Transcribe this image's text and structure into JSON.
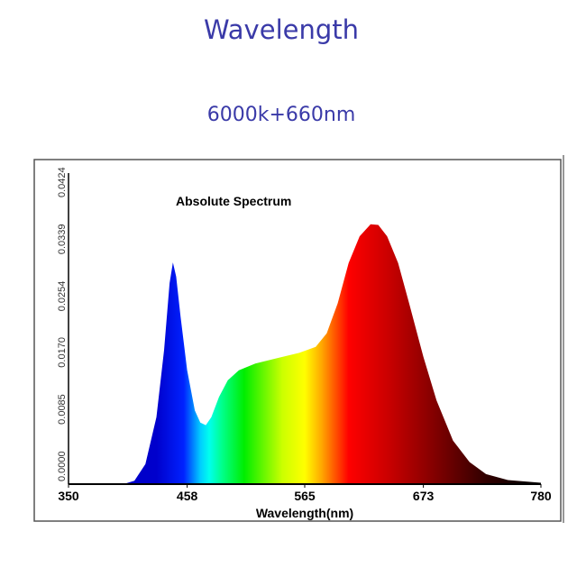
{
  "header": {
    "title": "Wavelength",
    "subtitle": "6000k+660nm"
  },
  "chart_data": {
    "type": "area",
    "title": "Absolute Spectrum",
    "xlabel": "Wavelength(nm)",
    "ylabel": "",
    "xlim": [
      350,
      780
    ],
    "ylim": [
      0,
      0.0424
    ],
    "xticks": [
      "350",
      "458",
      "565",
      "673",
      "780"
    ],
    "yticks": [
      "0.0000",
      "0.0085",
      "0.0170",
      "0.0254",
      "0.0339",
      "0.0424"
    ],
    "grid": false,
    "x": [
      350,
      400,
      410,
      420,
      430,
      437,
      442,
      445,
      448,
      452,
      458,
      465,
      470,
      475,
      480,
      487,
      495,
      505,
      520,
      540,
      560,
      575,
      585,
      595,
      605,
      615,
      625,
      632,
      640,
      650,
      660,
      673,
      685,
      700,
      715,
      730,
      750,
      780
    ],
    "y": [
      0,
      0,
      0.0005,
      0.003,
      0.01,
      0.02,
      0.03,
      0.0331,
      0.031,
      0.025,
      0.017,
      0.011,
      0.0092,
      0.0088,
      0.01,
      0.013,
      0.0155,
      0.017,
      0.018,
      0.0188,
      0.0196,
      0.0205,
      0.0225,
      0.027,
      0.033,
      0.037,
      0.0388,
      0.0387,
      0.037,
      0.033,
      0.027,
      0.019,
      0.0125,
      0.0065,
      0.0033,
      0.0015,
      0.0006,
      0.0002
    ]
  }
}
